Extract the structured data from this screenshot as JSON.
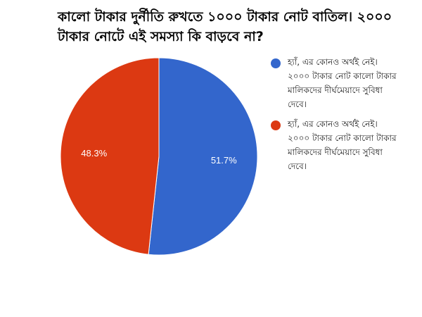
{
  "chart_data": {
    "type": "pie",
    "title": "কালো টাকার দুর্নীতি রুখতে ১০০০ টাকার নোট বাতিল। ২০০০ টাকার নোটে এই সমস্যা কি বাড়বে না?",
    "slices": [
      {
        "label": "হ্যাঁ, এর কোনও অর্থই নেই। ২০০০ টাকার নোট কালো টাকার মালিকদের দীর্ঘমেয়াদে সুবিধা দেবে।",
        "value": 51.7,
        "value_label": "51.7%",
        "color": "#3366CC"
      },
      {
        "label": "হ্যাঁ, এর কোনও অর্থই নেই। ২০০০ টাকার নোট কালো টাকার মালিকদের দীর্ঘমেয়াদে সুবিধা দেবে।",
        "value": 48.3,
        "value_label": "48.3%",
        "color": "#DC3912"
      }
    ],
    "legend_position": "right",
    "start_angle": "top",
    "direction": "clockwise"
  }
}
